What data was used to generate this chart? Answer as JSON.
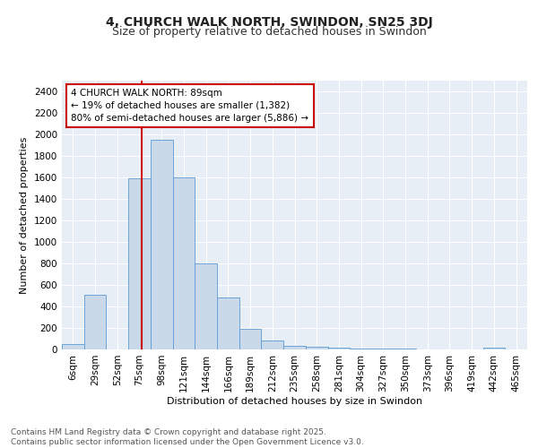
{
  "title": "4, CHURCH WALK NORTH, SWINDON, SN25 3DJ",
  "subtitle": "Size of property relative to detached houses in Swindon",
  "xlabel": "Distribution of detached houses by size in Swindon",
  "ylabel": "Number of detached properties",
  "bin_labels": [
    "6sqm",
    "29sqm",
    "52sqm",
    "75sqm",
    "98sqm",
    "121sqm",
    "144sqm",
    "166sqm",
    "189sqm",
    "212sqm",
    "235sqm",
    "258sqm",
    "281sqm",
    "304sqm",
    "327sqm",
    "350sqm",
    "373sqm",
    "396sqm",
    "419sqm",
    "442sqm",
    "465sqm"
  ],
  "bar_heights": [
    50,
    510,
    0,
    1590,
    1950,
    1600,
    800,
    480,
    195,
    85,
    35,
    25,
    15,
    10,
    5,
    5,
    0,
    0,
    0,
    20,
    0
  ],
  "bar_color": "#c9d9ea",
  "bar_edgecolor": "#5b9bd5",
  "background_color": "#e8eef6",
  "grid_color": "#ffffff",
  "annotation_text": "4 CHURCH WALK NORTH: 89sqm\n← 19% of detached houses are smaller (1,382)\n80% of semi-detached houses are larger (5,886) →",
  "annotation_box_facecolor": "#ffffff",
  "annotation_box_edgecolor": "#cc0000",
  "ylim": [
    0,
    2500
  ],
  "yticks": [
    0,
    200,
    400,
    600,
    800,
    1000,
    1200,
    1400,
    1600,
    1800,
    2000,
    2200,
    2400
  ],
  "footer_text": "Contains HM Land Registry data © Crown copyright and database right 2025.\nContains public sector information licensed under the Open Government Licence v3.0.",
  "title_fontsize": 10,
  "subtitle_fontsize": 9,
  "axis_label_fontsize": 8,
  "tick_fontsize": 7.5,
  "annotation_fontsize": 7.5,
  "footer_fontsize": 6.5,
  "bin_starts": [
    6,
    29,
    52,
    75,
    98,
    121,
    144,
    166,
    189,
    212,
    235,
    258,
    281,
    304,
    327,
    350,
    373,
    396,
    419,
    442,
    465
  ],
  "red_line_value": 89
}
